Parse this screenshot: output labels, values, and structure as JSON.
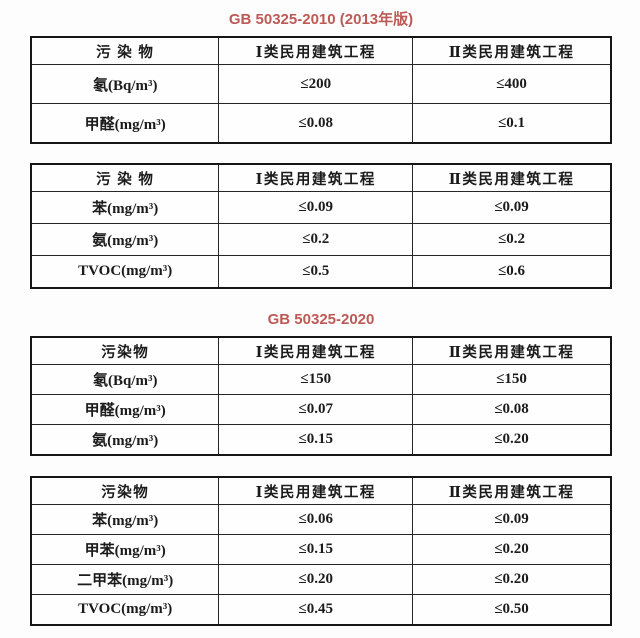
{
  "titles": {
    "standard_2010": "GB 50325-2010 (2013年版)",
    "standard_2020": "GB 50325-2020",
    "accent_color": "#bd5a55"
  },
  "tables": [
    {
      "name": "gb50325-2010-table-1",
      "headers": [
        "污 染 物",
        "Ⅰ类民用建筑工程",
        "Ⅱ类民用建筑工程"
      ],
      "rows": [
        [
          "氡(Bq/m³)",
          "≤200",
          "≤400"
        ],
        [
          "甲醛(mg/m³)",
          "≤0.08",
          "≤0.1"
        ]
      ]
    },
    {
      "name": "gb50325-2010-table-2",
      "headers": [
        "污 染 物",
        "Ⅰ类民用建筑工程",
        "Ⅱ类民用建筑工程"
      ],
      "rows": [
        [
          "苯(mg/m³)",
          "≤0.09",
          "≤0.09"
        ],
        [
          "氨(mg/m³)",
          "≤0.2",
          "≤0.2"
        ],
        [
          "TVOC(mg/m³)",
          "≤0.5",
          "≤0.6"
        ]
      ]
    },
    {
      "name": "gb50325-2020-table-1",
      "headers": [
        "污染物",
        "Ⅰ类民用建筑工程",
        "Ⅱ类民用建筑工程"
      ],
      "rows": [
        [
          "氡(Bq/m³)",
          "≤150",
          "≤150"
        ],
        [
          "甲醛(mg/m³)",
          "≤0.07",
          "≤0.08"
        ],
        [
          "氨(mg/m³)",
          "≤0.15",
          "≤0.20"
        ]
      ]
    },
    {
      "name": "gb50325-2020-table-2",
      "headers": [
        "污染物",
        "Ⅰ类民用建筑工程",
        "Ⅱ类民用建筑工程"
      ],
      "rows": [
        [
          "苯(mg/m³)",
          "≤0.06",
          "≤0.09"
        ],
        [
          "甲苯(mg/m³)",
          "≤0.15",
          "≤0.20"
        ],
        [
          "二甲苯(mg/m³)",
          "≤0.20",
          "≤0.20"
        ],
        [
          "TVOC(mg/m³)",
          "≤0.45",
          "≤0.50"
        ]
      ]
    }
  ]
}
